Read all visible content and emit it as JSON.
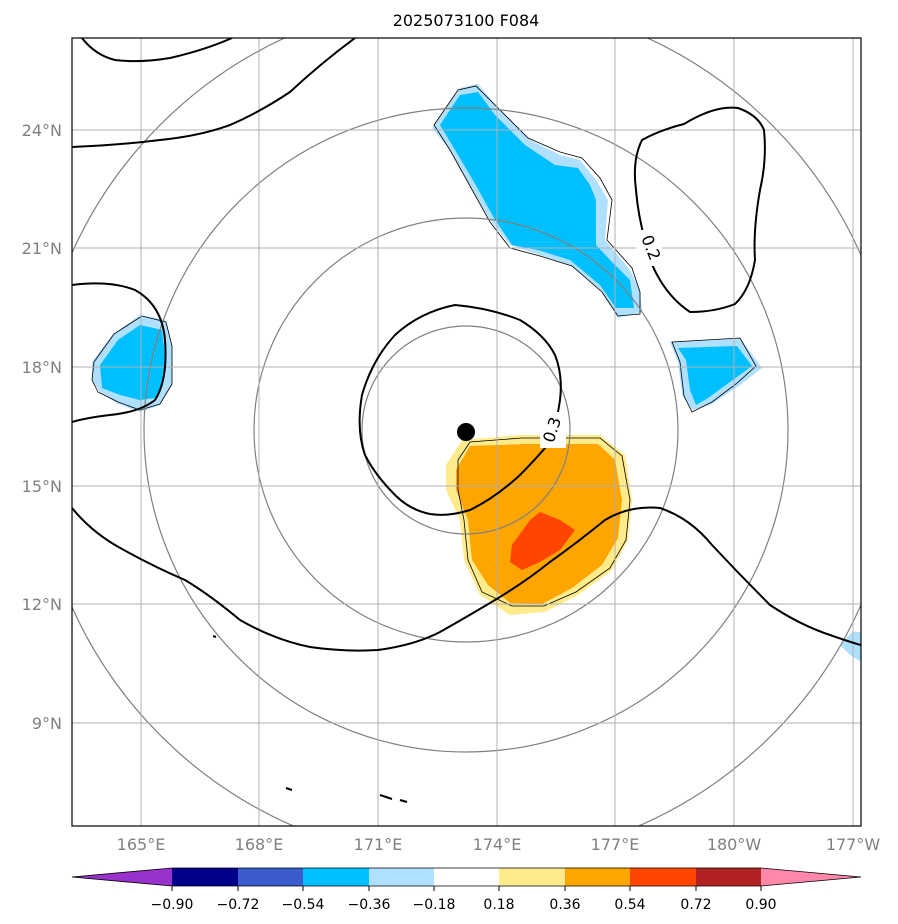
{
  "title": "2025073100 F084",
  "lon_ticks": [
    "165°E",
    "168°E",
    "171°E",
    "174°E",
    "177°E",
    "180°W",
    "177°W"
  ],
  "lat_ticks": [
    "24°N",
    "21°N",
    "18°N",
    "15°N",
    "12°N",
    "9°N"
  ],
  "contour_labels": [
    "0.2",
    "0.3"
  ],
  "colorbar": {
    "colors": [
      "#9932cc",
      "#00008b",
      "#3a5ccc",
      "#00bfff",
      "#b0e0ff",
      "#ffffff",
      "#ffeb8c",
      "#ffa500",
      "#ff4500",
      "#b22222",
      "#ff88aa"
    ],
    "tick_labels": [
      "−0.90",
      "−0.72",
      "−0.54",
      "−0.36",
      "−0.18",
      "0.18",
      "0.36",
      "0.54",
      "0.72",
      "0.90"
    ]
  },
  "colors": {
    "grid": "#b0b0b0",
    "range_ring": "#808080",
    "contour": "#000000",
    "neg_light": "#b0e0ff",
    "neg_mid": "#00bfff",
    "pos_light": "#ffeb8c",
    "pos_mid": "#ffa500",
    "pos_strong": "#ff4500"
  }
}
